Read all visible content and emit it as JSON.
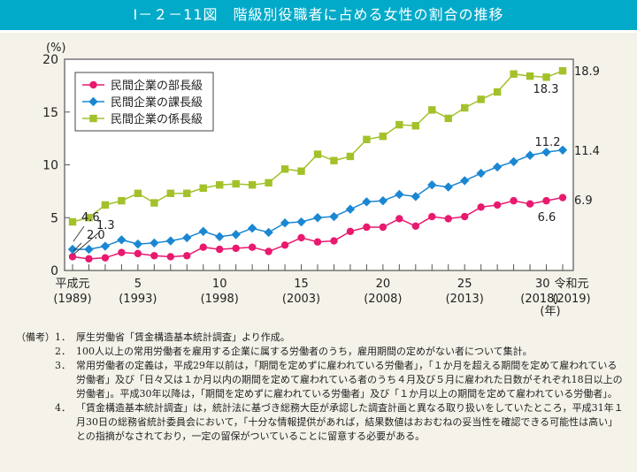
{
  "header": {
    "title": "Ⅰ－２－11図　階級別役職者に占める女性の割合の推移"
  },
  "chart_data": {
    "type": "line",
    "title": "階級別役職者に占める女性の割合の推移",
    "ylabel": "(%)",
    "xlabel": "(年)",
    "ylim": [
      0,
      20
    ],
    "yticks": [
      0,
      5,
      10,
      15,
      20
    ],
    "x": [
      1989,
      1990,
      1991,
      1992,
      1993,
      1994,
      1995,
      1996,
      1997,
      1998,
      1999,
      2000,
      2001,
      2002,
      2003,
      2004,
      2005,
      2006,
      2007,
      2008,
      2009,
      2010,
      2011,
      2012,
      2013,
      2014,
      2015,
      2016,
      2017,
      2018,
      2019
    ],
    "xtick_labels": [
      {
        "year": 1989,
        "era": "平成元",
        "western": "(1989)"
      },
      {
        "year": 1993,
        "era": "5",
        "western": "(1993)"
      },
      {
        "year": 1998,
        "era": "10",
        "western": "(1998)"
      },
      {
        "year": 2003,
        "era": "15",
        "western": "(2003)"
      },
      {
        "year": 2008,
        "era": "20",
        "western": "(2008)"
      },
      {
        "year": 2013,
        "era": "25",
        "western": "(2013)"
      },
      {
        "year": 2018,
        "era": "30",
        "western": "(2018)"
      },
      {
        "year": 2019,
        "era": "令和元",
        "western": "(2019)"
      }
    ],
    "legend_position": "top-left",
    "grid": false,
    "series": [
      {
        "name": "民間企業の部長級",
        "color": "#e8196e",
        "marker": "circle",
        "values": [
          1.3,
          1.1,
          1.2,
          1.7,
          1.6,
          1.4,
          1.3,
          1.4,
          2.2,
          2.0,
          2.1,
          2.2,
          1.8,
          2.4,
          3.1,
          2.7,
          2.8,
          3.7,
          4.1,
          4.1,
          4.9,
          4.2,
          5.1,
          4.9,
          5.1,
          6.0,
          6.2,
          6.6,
          6.3,
          6.6,
          6.9
        ]
      },
      {
        "name": "民間企業の課長級",
        "color": "#1a87d2",
        "marker": "diamond",
        "values": [
          2.0,
          2.0,
          2.3,
          2.9,
          2.5,
          2.6,
          2.8,
          3.1,
          3.7,
          3.2,
          3.4,
          4.0,
          3.6,
          4.5,
          4.6,
          5.0,
          5.1,
          5.8,
          6.5,
          6.6,
          7.2,
          7.0,
          8.1,
          7.9,
          8.5,
          9.2,
          9.8,
          10.3,
          10.9,
          11.2,
          11.4
        ]
      },
      {
        "name": "民間企業の係長級",
        "color": "#a3c12a",
        "marker": "square",
        "values": [
          4.6,
          5.0,
          6.2,
          6.6,
          7.3,
          6.4,
          7.3,
          7.3,
          7.8,
          8.1,
          8.2,
          8.1,
          8.3,
          9.6,
          9.4,
          11.0,
          10.4,
          10.8,
          12.4,
          12.7,
          13.8,
          13.7,
          15.2,
          14.4,
          15.4,
          16.2,
          16.9,
          18.6,
          18.4,
          18.3,
          18.9
        ]
      }
    ],
    "annotations": [
      {
        "series": 2,
        "year": 1989,
        "text": "4.6"
      },
      {
        "series": 1,
        "year": 1989,
        "text": "2.0"
      },
      {
        "series": 0,
        "year": 1989,
        "text": "1.3"
      },
      {
        "series": 2,
        "year": 2018,
        "text": "18.3"
      },
      {
        "series": 1,
        "year": 2018,
        "text": "11.2"
      },
      {
        "series": 0,
        "year": 2018,
        "text": "6.6"
      },
      {
        "series": 2,
        "year": 2019,
        "text": "18.9"
      },
      {
        "series": 1,
        "year": 2019,
        "text": "11.4"
      },
      {
        "series": 0,
        "year": 2019,
        "text": "6.9"
      }
    ]
  },
  "notes": {
    "head": "（備考）",
    "items": [
      {
        "num": "1．",
        "text": "厚生労働省「賃金構造基本統計調査」より作成。"
      },
      {
        "num": "2．",
        "text": "100人以上の常用労働者を雇用する企業に属する労働者のうち，雇用期間の定めがない者について集計。"
      },
      {
        "num": "3．",
        "text": "常用労働者の定義は，平成29年以前は，「期間を定めずに雇われている労働者」，「１か月を超える期間を定めて雇われている労働者」及び「日々又は１か月以内の期間を定めて雇われている者のうち４月及び５月に雇われた日数がそれぞれ18日以上の労働者」。平成30年以降は，「期間を定めずに雇われている労働者」及び「１か月以上の期間を定めて雇われている労働者」。"
      },
      {
        "num": "4．",
        "text": "「賃金構造基本統計調査」は，統計法に基づき総務大臣が承認した調査計画と異なる取り扱いをしていたところ，平成31年１月30日の総務省統計委員会において，「十分な情報提供があれば，結果数値はおおむねの妥当性を確認できる可能性は高い」との指摘がなされており，一定の留保がついていることに留意する必要がある。"
      }
    ]
  }
}
